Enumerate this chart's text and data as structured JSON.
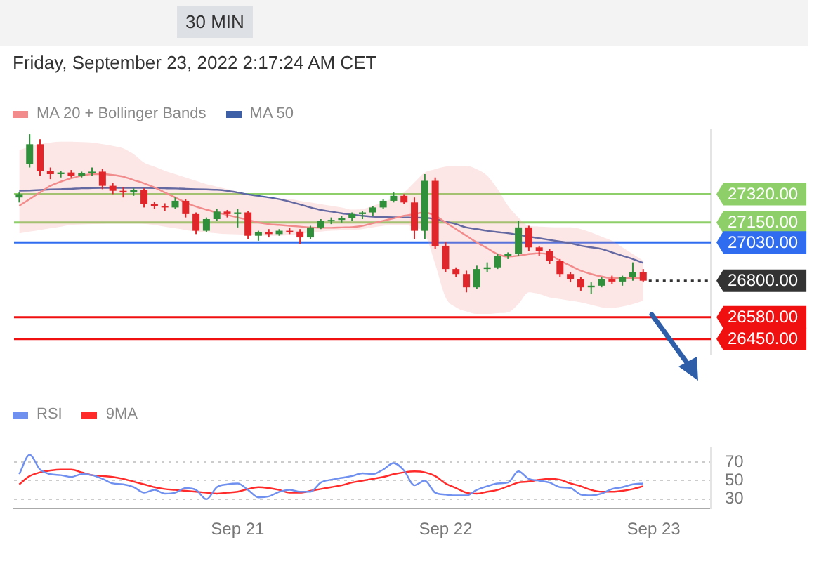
{
  "chart_data": [
    {
      "type": "candlestick",
      "title": "30 MIN",
      "subtitle": "Friday, September 23, 2022 2:17:24 AM CET",
      "categories": [
        null,
        null,
        null,
        null,
        null,
        null,
        null,
        null,
        null,
        null,
        null,
        null,
        null,
        null,
        null,
        null,
        null,
        null,
        null,
        null,
        null,
        null,
        null,
        null,
        null,
        null,
        null,
        null,
        null,
        null,
        null,
        null,
        null,
        null,
        null,
        null,
        null,
        null,
        null,
        null,
        null,
        null,
        null,
        null,
        null,
        null,
        null,
        null,
        null,
        null,
        null,
        null,
        null,
        null,
        null,
        null,
        null,
        null,
        null,
        null,
        null,
        null,
        null,
        null,
        null,
        null,
        null
      ],
      "ohlc": [
        [
          27300,
          27330,
          27270,
          27320
        ],
        [
          27500,
          27680,
          27480,
          27620
        ],
        [
          27620,
          27650,
          27430,
          27460
        ],
        [
          27460,
          27480,
          27410,
          27440
        ],
        [
          27440,
          27460,
          27420,
          27450
        ],
        [
          27450,
          27465,
          27420,
          27430
        ],
        [
          27430,
          27455,
          27420,
          27445
        ],
        [
          27445,
          27480,
          27430,
          27455
        ],
        [
          27455,
          27470,
          27350,
          27370
        ],
        [
          27370,
          27385,
          27320,
          27340
        ],
        [
          27340,
          27360,
          27300,
          27330
        ],
        [
          27330,
          27355,
          27310,
          27345
        ],
        [
          27345,
          27355,
          27240,
          27260
        ],
        [
          27260,
          27275,
          27230,
          27250
        ],
        [
          27250,
          27265,
          27220,
          27240
        ],
        [
          27240,
          27300,
          27230,
          27280
        ],
        [
          27280,
          27290,
          27180,
          27200
        ],
        [
          27200,
          27210,
          27080,
          27100
        ],
        [
          27100,
          27180,
          27090,
          27170
        ],
        [
          27170,
          27230,
          27160,
          27215
        ],
        [
          27215,
          27225,
          27180,
          27200
        ],
        [
          27200,
          27230,
          27120,
          27210
        ],
        [
          27210,
          27220,
          27050,
          27070
        ],
        [
          27070,
          27100,
          27040,
          27090
        ],
        [
          27090,
          27110,
          27060,
          27080
        ],
        [
          27080,
          27110,
          27070,
          27100
        ],
        [
          27100,
          27115,
          27080,
          27095
        ],
        [
          27095,
          27110,
          27020,
          27060
        ],
        [
          27060,
          27130,
          27050,
          27120
        ],
        [
          27120,
          27170,
          27110,
          27160
        ],
        [
          27160,
          27180,
          27140,
          27165
        ],
        [
          27165,
          27190,
          27150,
          27175
        ],
        [
          27175,
          27210,
          27160,
          27200
        ],
        [
          27200,
          27220,
          27170,
          27210
        ],
        [
          27210,
          27250,
          27190,
          27240
        ],
        [
          27240,
          27290,
          27230,
          27280
        ],
        [
          27280,
          27330,
          27270,
          27310
        ],
        [
          27310,
          27320,
          27260,
          27270
        ],
        [
          27270,
          27300,
          27050,
          27100
        ],
        [
          27100,
          27440,
          27050,
          27400
        ],
        [
          27400,
          27420,
          26990,
          27010
        ],
        [
          27010,
          27030,
          26850,
          26870
        ],
        [
          26870,
          26880,
          26820,
          26840
        ],
        [
          26840,
          26860,
          26730,
          26760
        ],
        [
          26760,
          26890,
          26750,
          26870
        ],
        [
          26870,
          26910,
          26850,
          26880
        ],
        [
          26880,
          26960,
          26870,
          26950
        ],
        [
          26950,
          26970,
          26930,
          26960
        ],
        [
          26960,
          27160,
          26950,
          27120
        ],
        [
          27120,
          27130,
          26980,
          27000
        ],
        [
          27000,
          27010,
          26950,
          26980
        ],
        [
          26980,
          26990,
          26900,
          26920
        ],
        [
          26920,
          26930,
          26820,
          26840
        ],
        [
          26840,
          26850,
          26790,
          26810
        ],
        [
          26810,
          26820,
          26740,
          26760
        ],
        [
          26760,
          26790,
          26720,
          26770
        ],
        [
          26770,
          26820,
          26760,
          26810
        ],
        [
          26810,
          26830,
          26780,
          26795
        ],
        [
          26795,
          26830,
          26770,
          26820
        ],
        [
          26820,
          26910,
          26800,
          26850
        ],
        [
          26850,
          26870,
          26790,
          26800
        ],
        null,
        null,
        null,
        null,
        null,
        null
      ],
      "colors": [
        "#2f8f3a",
        "#2f8f3a",
        "#e0262a",
        "#e0262a",
        "#2f8f3a",
        "#e0262a",
        "#2f8f3a",
        "#2f8f3a",
        "#e0262a",
        "#e0262a",
        "#e0262a",
        "#2f8f3a",
        "#e0262a",
        "#e0262a",
        "#e0262a",
        "#2f8f3a",
        "#e0262a",
        "#e0262a",
        "#2f8f3a",
        "#2f8f3a",
        "#e0262a",
        "#2f8f3a",
        "#e0262a",
        "#2f8f3a",
        "#e0262a",
        "#2f8f3a",
        "#e0262a",
        "#e0262a",
        "#2f8f3a",
        "#2f8f3a",
        "#2f8f3a",
        "#2f8f3a",
        "#2f8f3a",
        "#2f8f3a",
        "#2f8f3a",
        "#2f8f3a",
        "#2f8f3a",
        "#e0262a",
        "#e0262a",
        "#2f8f3a",
        "#e0262a",
        "#e0262a",
        "#e0262a",
        "#e0262a",
        "#2f8f3a",
        "#2f8f3a",
        "#2f8f3a",
        "#2f8f3a",
        "#2f8f3a",
        "#e0262a",
        "#e0262a",
        "#e0262a",
        "#e0262a",
        "#e0262a",
        "#e0262a",
        "#2f8f3a",
        "#2f8f3a",
        "#e0262a",
        "#2f8f3a",
        "#2f8f3a",
        "#e0262a",
        null,
        null,
        null,
        null,
        null,
        null
      ],
      "series": [
        {
          "name": "MA 20 + Bollinger Bands",
          "type": "line",
          "color": "#f28b8b",
          "values": [
            27250,
            27290,
            27330,
            27370,
            27395,
            27415,
            27430,
            27440,
            27440,
            27435,
            27425,
            27405,
            27385,
            27360,
            27330,
            27300,
            27270,
            27245,
            27227,
            27210,
            27195,
            27180,
            27165,
            27150,
            27140,
            27135,
            27130,
            27125,
            27120,
            27118,
            27118,
            27120,
            27122,
            27130,
            27145,
            27160,
            27175,
            27190,
            27200,
            27210,
            27190,
            27150,
            27110,
            27070,
            27030,
            26995,
            26960,
            26945,
            26950,
            26960,
            26965,
            26955,
            26920,
            26890,
            26860,
            26840,
            26825,
            26815,
            26815,
            26815,
            26815,
            null,
            null,
            null,
            null,
            null,
            null
          ],
          "upper": [
            27585,
            27605,
            27620,
            27630,
            27635,
            27635,
            27633,
            27630,
            27620,
            27610,
            27595,
            27560,
            27510,
            27485,
            27460,
            27440,
            27420,
            27400,
            27380,
            27365,
            27350,
            27335,
            27320,
            27310,
            27300,
            27295,
            27290,
            27280,
            27270,
            27260,
            27250,
            27240,
            27227,
            27230,
            27250,
            27270,
            27300,
            27330,
            27390,
            27450,
            27470,
            27485,
            27490,
            27490,
            27470,
            27430,
            27350,
            27250,
            27180,
            27130,
            27125,
            27122,
            27120,
            27120,
            27110,
            27090,
            27065,
            27040,
            27000,
            26960,
            26920,
            null,
            null,
            null,
            null,
            null,
            null
          ],
          "lower": [
            27085,
            27095,
            27105,
            27115,
            27125,
            27135,
            27138,
            27140,
            27142,
            27143,
            27143,
            27143,
            27142,
            27135,
            27125,
            27115,
            27105,
            27095,
            27090,
            27085,
            27080,
            27078,
            27075,
            27072,
            27070,
            27070,
            27075,
            27082,
            27090,
            27095,
            27100,
            27103,
            27105,
            27110,
            27120,
            27130,
            27135,
            27135,
            27120,
            27080,
            26900,
            26700,
            26640,
            26615,
            26600,
            26600,
            26605,
            26610,
            26660,
            26730,
            26720,
            26700,
            26690,
            26680,
            26670,
            26655,
            26640,
            26637,
            26645,
            26660,
            26680,
            null,
            null,
            null,
            null,
            null,
            null
          ]
        },
        {
          "name": "MA 50",
          "type": "line",
          "color": "#3d5fa8",
          "values": [
            27340,
            27342,
            27345,
            27348,
            27350,
            27352,
            27355,
            27356,
            27357,
            27358,
            27358,
            27358,
            27357,
            27356,
            27355,
            27354,
            27352,
            27350,
            27348,
            27346,
            27340,
            27330,
            27318,
            27310,
            27300,
            27290,
            27275,
            27258,
            27240,
            27225,
            27215,
            27205,
            27197,
            27190,
            27185,
            27183,
            27181,
            27180,
            27179,
            27178,
            27170,
            27155,
            27140,
            27120,
            27110,
            27100,
            27092,
            27085,
            27075,
            27065,
            27055,
            27045,
            27035,
            27025,
            27010,
            27000,
            26990,
            26970,
            26950,
            26930,
            26907,
            null,
            null,
            null,
            null,
            null,
            null
          ]
        }
      ],
      "ref_lines": [
        {
          "axis": "y",
          "value": 27320,
          "label": "27320.00",
          "color": "#8fcf6a"
        },
        {
          "axis": "y",
          "value": 27150,
          "label": "27150.00",
          "color": "#8fcf6a"
        },
        {
          "axis": "y",
          "value": 27030,
          "label": "27030.00",
          "color": "#2f6cf0"
        },
        {
          "axis": "y",
          "value": 26800,
          "label": "26800.00",
          "color": "#333333",
          "line_style": "dotted"
        },
        {
          "axis": "y",
          "value": 26580,
          "label": "26580.00",
          "color": "#f01010"
        },
        {
          "axis": "y",
          "value": 26450,
          "label": "26450.00",
          "color": "#f01010"
        }
      ],
      "ylim": [
        26360,
        27710
      ],
      "legend": "top left",
      "tick_labels": false
    },
    {
      "type": "line",
      "categories": [
        null,
        null,
        null,
        null,
        null,
        null,
        null,
        null,
        null,
        null,
        null,
        null,
        null,
        null,
        null,
        null,
        null,
        null,
        null,
        null,
        null,
        "Sep 21",
        null,
        null,
        null,
        null,
        null,
        null,
        null,
        null,
        null,
        null,
        null,
        null,
        null,
        null,
        null,
        null,
        null,
        null,
        null,
        "Sep 22",
        null,
        null,
        null,
        null,
        null,
        null,
        null,
        null,
        null,
        null,
        null,
        null,
        null,
        null,
        null,
        null,
        null,
        null,
        null,
        "Sep 23",
        null,
        null,
        null,
        null,
        null
      ],
      "series": [
        {
          "name": "RSI",
          "color": "#7090f0",
          "values": [
            57,
            78,
            62,
            57,
            56,
            54,
            57,
            56,
            52,
            47,
            46,
            43,
            37,
            40,
            36,
            37,
            42,
            40,
            30,
            43,
            46,
            47,
            40,
            32,
            33,
            38,
            40,
            38,
            38,
            48,
            51,
            53,
            55,
            58,
            57,
            62,
            69,
            61,
            45,
            50,
            37,
            35,
            34,
            34,
            40,
            44,
            47,
            48,
            60,
            52,
            50,
            48,
            43,
            42,
            35,
            34,
            36,
            41,
            43,
            46,
            47,
            null,
            null,
            null,
            null,
            null,
            null
          ]
        },
        {
          "name": "9MA",
          "color": "#ff2a2a",
          "values": [
            46,
            55,
            59,
            61,
            62,
            62,
            59,
            56,
            55,
            54,
            52,
            49,
            46,
            43,
            41,
            40,
            39,
            38,
            37,
            36,
            37,
            38,
            41,
            43,
            42,
            40,
            37,
            37,
            39,
            41,
            43,
            45,
            48,
            50,
            52,
            54,
            57,
            59,
            60,
            59,
            55,
            47,
            42,
            37,
            36,
            38,
            40,
            44,
            48,
            49,
            51,
            52,
            51,
            47,
            44,
            40,
            38,
            38,
            39,
            41,
            44,
            null,
            null,
            null,
            null,
            null,
            null
          ]
        }
      ],
      "ylim": [
        20,
        85
      ],
      "yticks": [
        30,
        50,
        70
      ],
      "grid": "y",
      "legend": "top left"
    }
  ]
}
